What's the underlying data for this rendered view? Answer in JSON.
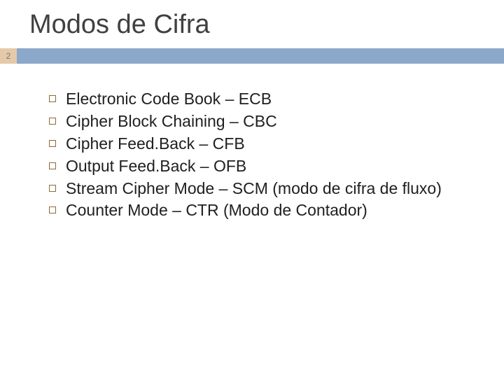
{
  "slide": {
    "title": "Modos de Cifra",
    "page_number": "2",
    "title_fontsize": 38,
    "title_color": "#404040",
    "bar_accent_color": "#e6c9a8",
    "bar_fill_color": "#8ba7c9",
    "bullet_border_color": "#8a6a3a",
    "body_fontsize": 23,
    "body_color": "#202020",
    "background_color": "#ffffff",
    "items": [
      "Electronic Code Book – ECB",
      "Cipher Block Chaining – CBC",
      "Cipher Feed.Back – CFB",
      "Output Feed.Back – OFB",
      "Stream Cipher Mode – SCM (modo de cifra de fluxo)",
      "Counter Mode – CTR (Modo de Contador)"
    ]
  }
}
